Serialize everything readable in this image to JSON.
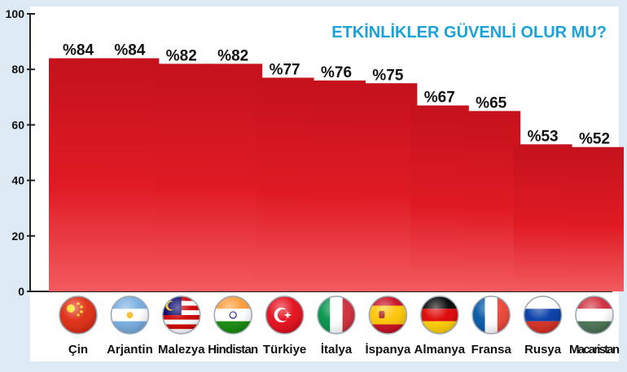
{
  "chart_data": {
    "type": "bar",
    "title": "ETKİNLİKLER GÜVENLİ OLUR MU?",
    "categories": [
      "Çin",
      "Arjantin",
      "Malezya",
      "Hindistan",
      "Türkiye",
      "İtalya",
      "İspanya",
      "Almanya",
      "Fransa",
      "Rusya",
      "Macaristan"
    ],
    "values": [
      84,
      84,
      82,
      82,
      77,
      76,
      75,
      67,
      65,
      53,
      52
    ],
    "value_labels": [
      "%84",
      "%84",
      "%82",
      "%82",
      "%77",
      "%76",
      "%75",
      "%67",
      "%65",
      "%53",
      "%52"
    ],
    "flag_icons": [
      "china-flag-icon",
      "argentina-flag-icon",
      "malaysia-flag-icon",
      "india-flag-icon",
      "turkey-flag-icon",
      "italy-flag-icon",
      "spain-flag-icon",
      "germany-flag-icon",
      "france-flag-icon",
      "russia-flag-icon",
      "hungary-flag-icon"
    ],
    "yticks": [
      0,
      20,
      40,
      60,
      80,
      100
    ],
    "ylim": [
      0,
      100
    ],
    "xlabel": "",
    "ylabel": "",
    "grid": false,
    "legend": "none",
    "colors": {
      "bar_top": "#c4121c",
      "bar_mid": "#e01b24",
      "bar_bottom": "#f25b60",
      "title": "#1aa3d9",
      "background": "#dde9f3",
      "plot_area": "#ffffff",
      "text": "#111111"
    }
  }
}
